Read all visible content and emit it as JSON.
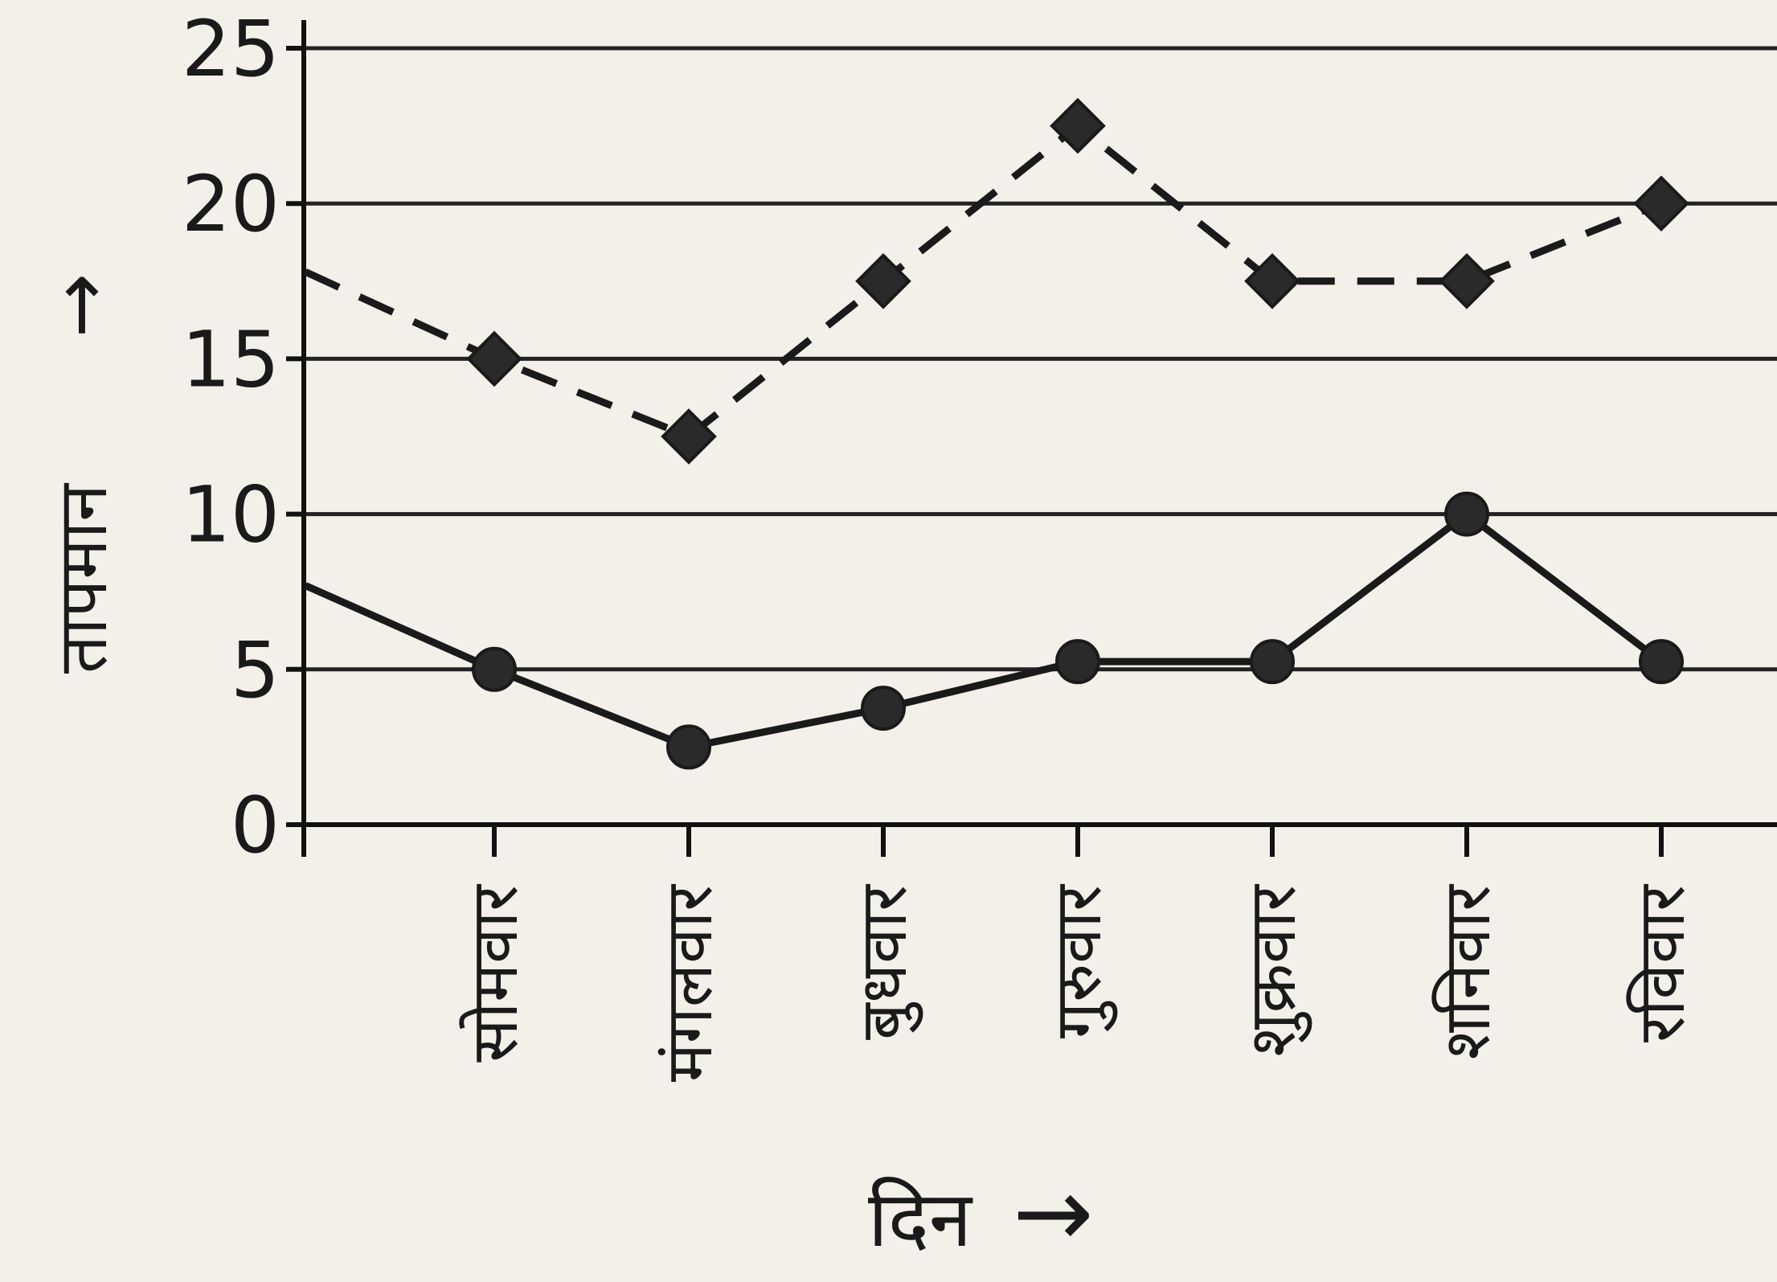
{
  "chart_data": {
    "type": "line",
    "title": "",
    "xlabel": "दिन",
    "xlabel_arrow": "→",
    "ylabel": "तापमान",
    "ylabel_arrow": "→",
    "categories": [
      "सोमवार",
      "मंगलवार",
      "बुधवार",
      "गुरुवार",
      "शुक्रवार",
      "शनिवार",
      "रविवार"
    ],
    "y_ticks": [
      "0",
      "5",
      "10",
      "15",
      "20",
      "25"
    ],
    "ylim": [
      0,
      25
    ],
    "grid": true,
    "series": [
      {
        "style": "dashed",
        "marker": "diamond",
        "values": [
          15,
          12.5,
          17.5,
          22.5,
          17.5,
          17.5,
          20
        ],
        "lead_in_value": 17.8
      },
      {
        "style": "solid",
        "marker": "circle",
        "values": [
          5,
          2.5,
          3.75,
          5.25,
          5.25,
          10,
          5.25
        ],
        "lead_in_value": 7.7
      }
    ],
    "colors": {
      "line": "#1a1a1a",
      "marker": "#2a2a2a",
      "background": "#f3f0ea"
    }
  }
}
